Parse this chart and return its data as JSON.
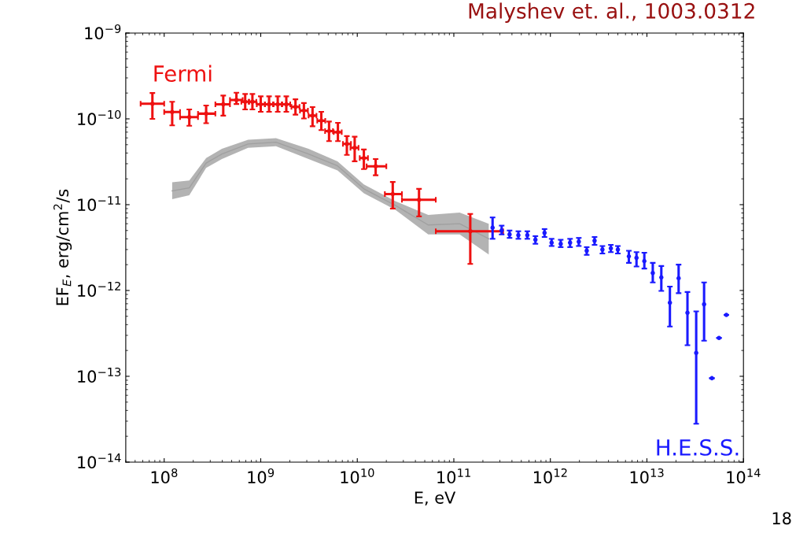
{
  "chart_data": {
    "type": "scatter",
    "title": "Malyshev et. al., 1003.0312",
    "xlabel": "E, eV",
    "ylabel": "EF$_{E}$, erg/cm$^{2}$/s",
    "annotations": [
      "18"
    ],
    "log": "xy",
    "grid": false,
    "legend": false,
    "line_style": "solid",
    "xlim": [
      40000000.0,
      100000000000000.0
    ],
    "xticks": [
      {
        "value": 100000000.0,
        "label": "10$^{8}$"
      },
      {
        "value": 1000000000.0,
        "label": "10$^{9}$"
      },
      {
        "value": 10000000000.0,
        "label": "10$^{10}$"
      },
      {
        "value": 100000000000.0,
        "label": "10$^{11}$"
      },
      {
        "value": 1000000000000.0,
        "label": "10$^{12}$"
      },
      {
        "value": 10000000000000.0,
        "label": "10$^{13}$"
      },
      {
        "value": 100000000000000.0,
        "label": "10$^{14}$"
      }
    ],
    "ylim": [
      1e-14,
      1e-09
    ],
    "yticks": [
      {
        "value": 1e-14,
        "label": "10$^{−14}$"
      },
      {
        "value": 1e-13,
        "label": "10$^{−13}$"
      },
      {
        "value": 1e-12,
        "label": "10$^{−12}$"
      },
      {
        "value": 1e-11,
        "label": "10$^{−11}$"
      },
      {
        "value": 1e-10,
        "label": "10$^{−10}$"
      },
      {
        "value": 1e-09,
        "label": "10$^{−9}$"
      }
    ],
    "series": [
      {
        "type": "line",
        "color": "#a0a0a0",
        "x": [
          121000000.0,
          182000000.0,
          272000000.0,
          396000000.0,
          740000000.0,
          1440000000.0,
          3130000000.0,
          6250000000.0,
          11700000000.0,
          24800000000.0,
          54300000000.0,
          115000000000.0,
          230000000000.0
        ],
        "values": [
          1.45e-11,
          1.57e-11,
          3.06e-11,
          3.9e-11,
          5.1e-11,
          5.35e-11,
          3.9e-11,
          2.83e-11,
          1.53e-11,
          9.8e-12,
          5.8e-12,
          6e-12,
          4e-12
        ],
        "lower": [
          1.16e-11,
          1.29e-11,
          2.68e-11,
          3.4e-11,
          4.6e-11,
          4.8e-11,
          3.4e-11,
          2.5e-11,
          1.36e-11,
          8.7e-12,
          4.5e-12,
          4.5e-12,
          2.63e-12
        ],
        "upper": [
          1.82e-11,
          1.91e-11,
          3.5e-11,
          4.47e-11,
          5.7e-11,
          5.95e-11,
          4.47e-11,
          3.2e-11,
          1.72e-11,
          1.1e-11,
          7.6e-12,
          8.1e-12,
          6e-12
        ]
      },
      {
        "name": "Fermi",
        "color": "#ee1111",
        "marker": "circle",
        "x": [
          75500000.0,
          121000000.0,
          182000000.0,
          272000000.0,
          409000000.0,
          560000000.0,
          690000000.0,
          820000000.0,
          1000000000.0,
          1220000000.0,
          1500000000.0,
          1840000000.0,
          2290000000.0,
          2800000000.0,
          3440000000.0,
          4240000000.0,
          5100000000.0,
          6300000000.0,
          7800000000.0,
          9400000000.0,
          11700000000.0,
          15500000000.0,
          23300000000.0,
          43600000000.0,
          148000000000.0
        ],
        "values": [
          1.5e-10,
          1.2e-10,
          1.05e-10,
          1.15e-10,
          1.48e-10,
          1.66e-10,
          1.58e-10,
          1.58e-10,
          1.48e-10,
          1.48e-10,
          1.48e-10,
          1.48e-10,
          1.38e-10,
          1.25e-10,
          1.09e-10,
          9.5e-11,
          7.2e-11,
          7e-11,
          5.1e-11,
          4.6e-11,
          3.5e-11,
          2.8e-11,
          1.33e-11,
          1.14e-11,
          4.9e-12
        ],
        "errors": [
          [
            1e-10,
            2e-10
          ],
          [
            8.4e-11,
            1.58e-10
          ],
          [
            8.3e-11,
            1.29e-10
          ],
          [
            8.9e-11,
            1.43e-10
          ],
          [
            1.09e-10,
            1.87e-10
          ],
          [
            1.49e-10,
            2.02e-10
          ],
          [
            1.29e-10,
            1.95e-10
          ],
          [
            1.29e-10,
            1.95e-10
          ],
          [
            1.21e-10,
            1.83e-10
          ],
          [
            1.21e-10,
            1.83e-10
          ],
          [
            1.21e-10,
            1.83e-10
          ],
          [
            1.21e-10,
            1.83e-10
          ],
          [
            1.12e-10,
            1.69e-10
          ],
          [
            1.01e-10,
            1.53e-10
          ],
          [
            8.2e-11,
            1.37e-10
          ],
          [
            7.4e-11,
            1.21e-10
          ],
          [
            5.5e-11,
            9.3e-11
          ],
          [
            5.5e-11,
            9e-11
          ],
          [
            3.8e-11,
            6.3e-11
          ],
          [
            3.2e-11,
            6.2e-11
          ],
          [
            2.6e-11,
            4.4e-11
          ],
          [
            2.2e-11,
            3.4e-11
          ],
          [
            9e-12,
            1.84e-11
          ],
          [
            7.3e-12,
            1.53e-11
          ],
          [
            2.04e-12,
            7.8e-12
          ]
        ],
        "xerrors": [
          [
            57000000.0,
            100000000.0
          ],
          [
            100000000.0,
            146000000.0
          ],
          [
            146000000.0,
            224000000.0
          ],
          [
            224000000.0,
            339000000.0
          ],
          [
            339000000.0,
            480000000.0
          ],
          [
            480000000.0,
            650000000.0
          ],
          [
            630000000.0,
            760000000.0
          ],
          [
            750000000.0,
            900000000.0
          ],
          [
            910000000.0,
            1100000000.0
          ],
          [
            1110000000.0,
            1340000000.0
          ],
          [
            1360000000.0,
            1650000000.0
          ],
          [
            1670000000.0,
            2020000000.0
          ],
          [
            2080000000.0,
            2520000000.0
          ],
          [
            2550000000.0,
            3080000000.0
          ],
          [
            3130000000.0,
            3780000000.0
          ],
          [
            3850000000.0,
            4660000000.0
          ],
          [
            4640000000.0,
            5600000000.0
          ],
          [
            5700000000.0,
            6900000000.0
          ],
          [
            7100000000.0,
            8600000000.0
          ],
          [
            8500000000.0,
            10300000000.0
          ],
          [
            10600000000.0,
            12900000000.0
          ],
          [
            12500000000.0,
            20000000000.0
          ],
          [
            19300000000.0,
            29000000000.0
          ],
          [
            29000000000.0,
            65000000000.0
          ],
          [
            65000000000.0,
            324000000000.0
          ]
        ]
      },
      {
        "name": "H.E.S.S.",
        "color": "#1a1aff",
        "marker": "circle",
        "x": [
          252000000000.0,
          313000000000.0,
          378000000000.0,
          466000000000.0,
          577000000000.0,
          700000000000.0,
          870000000000.0,
          1030000000000.0,
          1280000000000.0,
          1600000000000.0,
          1970000000000.0,
          2380000000000.0,
          2870000000000.0,
          3460000000000.0,
          4230000000000.0,
          5000000000000.0,
          6500000000000.0,
          7800000000000.0,
          9400000000000.0,
          11500000000000.0,
          14100000000000.0,
          17300000000000.0,
          21300000000000.0,
          26300000000000.0,
          32400000000000.0,
          39100000000000.0,
          47100000000000.0,
          55800000000000.0,
          66500000000000.0
        ],
        "values": [
          5.4e-12,
          5e-12,
          4.5e-12,
          4.4e-12,
          4.4e-12,
          3.9e-12,
          4.7e-12,
          3.6e-12,
          3.5e-12,
          3.6e-12,
          3.7e-12,
          2.9e-12,
          3.8e-12,
          3e-12,
          3.1e-12,
          3e-12,
          2.5e-12,
          2.4e-12,
          2.2e-12,
          1.6e-12,
          1.42e-12,
          7.2e-13,
          1.39e-12,
          5.5e-13,
          1.87e-13,
          6.9e-13,
          9.5e-14,
          2.8e-13,
          5.2e-13
        ],
        "errors": [
          [
            4e-12,
            7.1e-12
          ],
          [
            4.5e-12,
            5.7e-12
          ],
          [
            4.1e-12,
            5e-12
          ],
          [
            4e-12,
            4.9e-12
          ],
          [
            4e-12,
            4.9e-12
          ],
          [
            3.5e-12,
            4.3e-12
          ],
          [
            4.2e-12,
            5.2e-12
          ],
          [
            3.3e-12,
            4e-12
          ],
          [
            3.2e-12,
            3.9e-12
          ],
          [
            3.2e-12,
            4e-12
          ],
          [
            3.3e-12,
            4.1e-12
          ],
          [
            2.6e-12,
            3.2e-12
          ],
          [
            3.4e-12,
            4.2e-12
          ],
          [
            2.7e-12,
            3.3e-12
          ],
          [
            2.8e-12,
            3.4e-12
          ],
          [
            2.7e-12,
            3.3e-12
          ],
          [
            2.1e-12,
            2.9e-12
          ],
          [
            1.9e-12,
            2.8e-12
          ],
          [
            1.8e-12,
            2.75e-12
          ],
          [
            1.24e-12,
            2.1e-12
          ],
          [
            9.9e-13,
            1.93e-12
          ],
          [
            3.8e-13,
            1.11e-12
          ],
          [
            9.3e-13,
            2e-12
          ],
          [
            2.3e-13,
            9.6e-13
          ],
          [
            2.8e-14,
            5.7e-13
          ],
          [
            2.6e-13,
            1.24e-12
          ],
          null,
          null,
          null
        ]
      }
    ]
  }
}
